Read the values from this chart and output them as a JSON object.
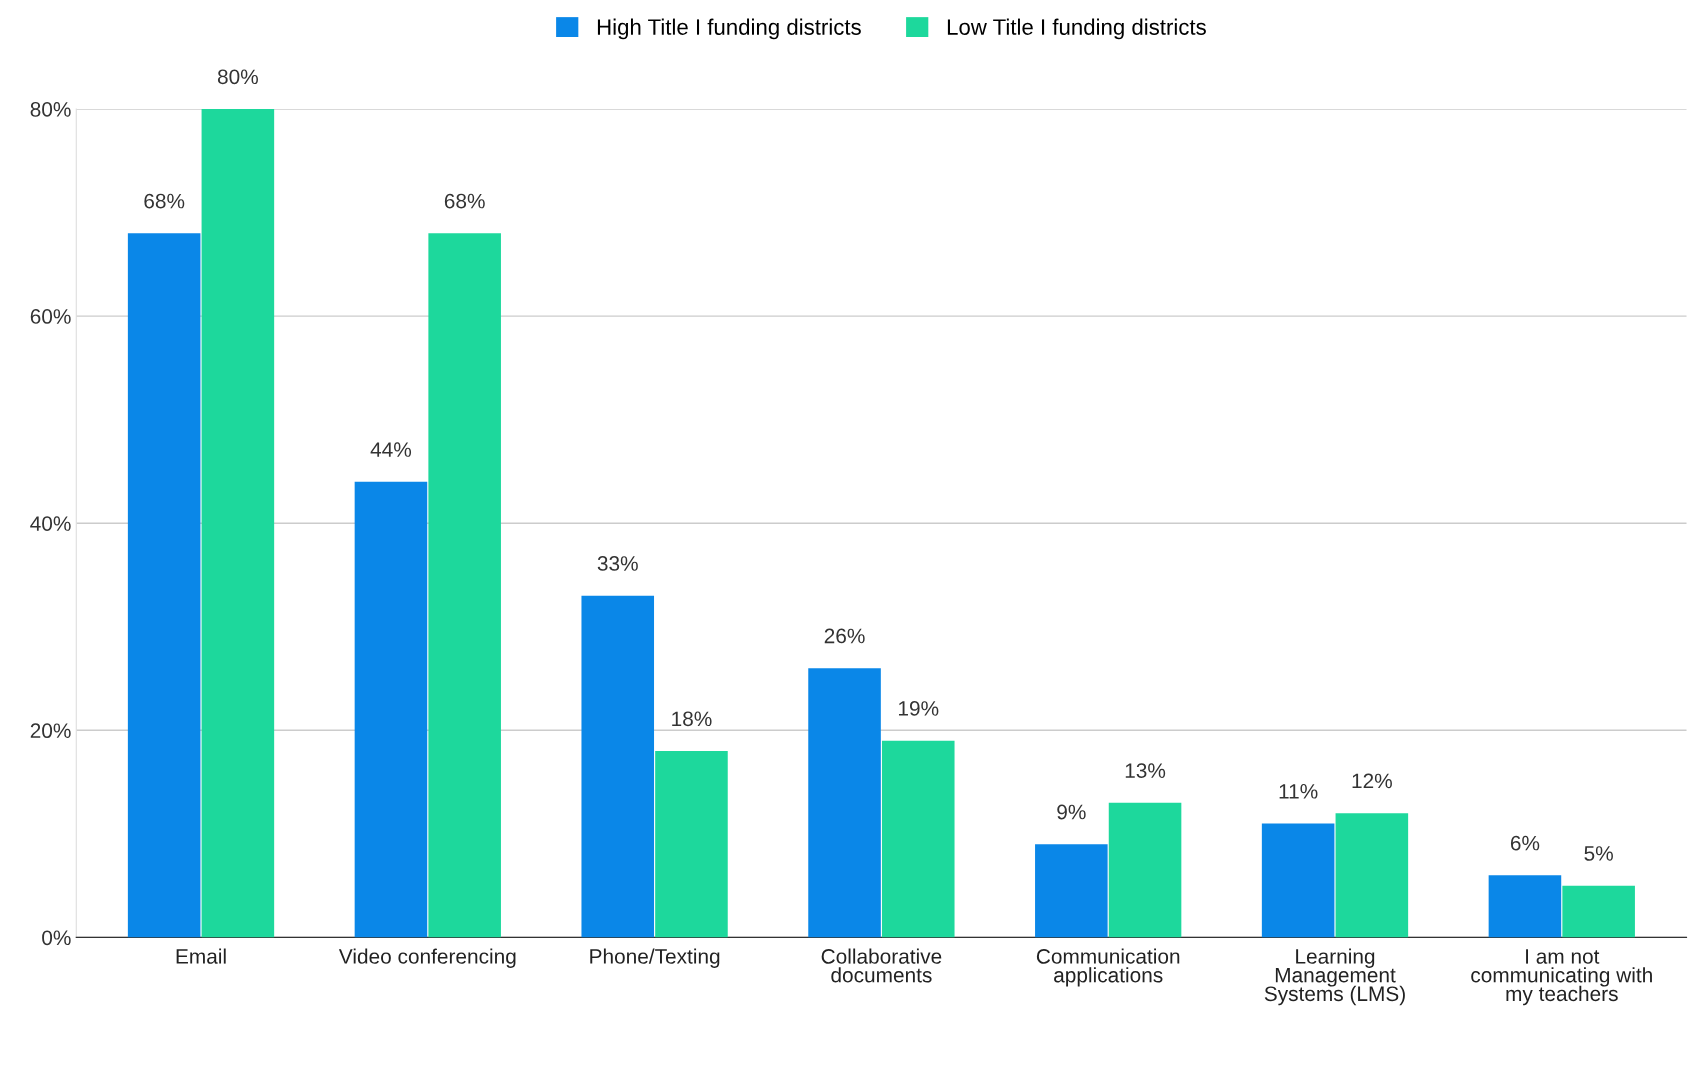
{
  "chart_data": {
    "type": "bar",
    "categories": [
      "Email",
      "Video conferencing",
      "Phone/Texting",
      "Collaborative\ndocuments",
      "Communication\napplications",
      "Learning\nManagement\nSystems (LMS)",
      "I am not\ncommunicating with\nmy teachers"
    ],
    "series": [
      {
        "name": "High Title I funding districts",
        "color": "#0a87e8",
        "values": [
          68,
          44,
          33,
          26,
          9,
          11,
          6
        ],
        "value_labels": [
          "68%",
          "44%",
          "33%",
          "26%",
          "9%",
          "11%",
          "6%"
        ]
      },
      {
        "name": "Low Title I funding districts",
        "color": "#1dd89c",
        "values": [
          80,
          68,
          18,
          19,
          13,
          12,
          5
        ],
        "value_labels": [
          "80%",
          "68%",
          "18%",
          "19%",
          "13%",
          "12%",
          "5%"
        ]
      }
    ],
    "ylim": [
      0,
      80
    ],
    "yticks": [
      {
        "value": 0,
        "label": "0%"
      },
      {
        "value": 20,
        "label": "20%"
      },
      {
        "value": 40,
        "label": "40%"
      },
      {
        "value": 60,
        "label": "60%"
      },
      {
        "value": 80,
        "label": "80%"
      }
    ],
    "grid": "y",
    "legend": "top"
  }
}
